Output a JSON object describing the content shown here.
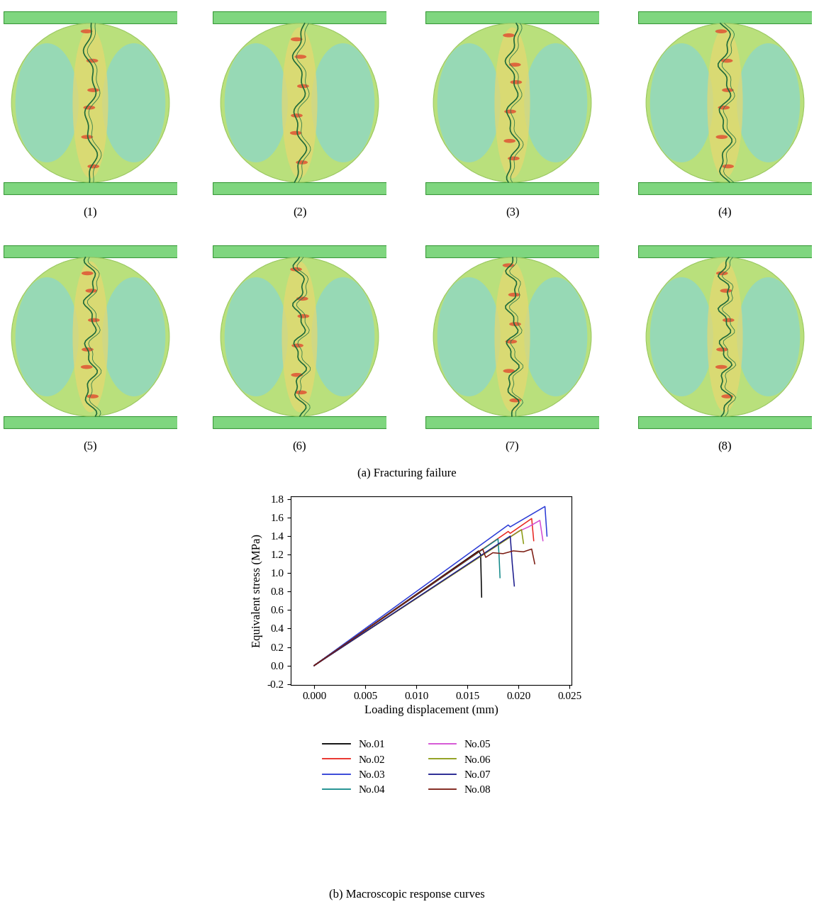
{
  "panels": {
    "caption": "(a) Fracturing failure",
    "labels": [
      "(1)",
      "(2)",
      "(3)",
      "(4)",
      "(5)",
      "(6)",
      "(7)",
      "(8)"
    ]
  },
  "chart_data": {
    "type": "line",
    "title": "(b) Macroscopic response curves",
    "x_label": "Loading displacement (mm)",
    "y_label": "Equivalent stress (MPa)",
    "xlim": [
      -0.0023,
      0.0252
    ],
    "xticks": [
      {
        "value": 0.0,
        "label": "0.000"
      },
      {
        "value": 0.005,
        "label": "0.005"
      },
      {
        "value": 0.01,
        "label": "0.010"
      },
      {
        "value": 0.015,
        "label": "0.015"
      },
      {
        "value": 0.02,
        "label": "0.020"
      },
      {
        "value": 0.025,
        "label": "0.025"
      }
    ],
    "ylim": [
      -0.21,
      1.83
    ],
    "yticks": [
      -0.2,
      {
        "value": 0.0,
        "label": "0.0"
      },
      0.2,
      0.4,
      0.6,
      0.8,
      {
        "value": 1.0,
        "label": "1.0"
      },
      1.2,
      1.4,
      1.6,
      1.8
    ],
    "series": [
      {
        "name": "No.01",
        "color": "#000000",
        "x": [
          0,
          0.0161,
          0.0163,
          0.0164
        ],
        "values": [
          0,
          1.24,
          1.2,
          0.74
        ]
      },
      {
        "name": "No.02",
        "color": "#e8251f",
        "x": [
          0,
          0.019,
          0.0192,
          0.0213,
          0.0215
        ],
        "values": [
          0,
          1.45,
          1.43,
          1.59,
          1.35
        ]
      },
      {
        "name": "No.03",
        "color": "#2a3ad6",
        "x": [
          0,
          0.019,
          0.0192,
          0.0226,
          0.0228
        ],
        "values": [
          0,
          1.52,
          1.5,
          1.72,
          1.4
        ]
      },
      {
        "name": "No.04",
        "color": "#138a8a",
        "x": [
          0,
          0.018,
          0.0181,
          0.0182
        ],
        "values": [
          0,
          1.37,
          1.2,
          0.95
        ]
      },
      {
        "name": "No.05",
        "color": "#d24ad2",
        "x": [
          0,
          0.02,
          0.021,
          0.0221,
          0.0224
        ],
        "values": [
          0,
          1.45,
          1.5,
          1.57,
          1.35
        ]
      },
      {
        "name": "No.06",
        "color": "#8a9a10",
        "x": [
          0,
          0.0203,
          0.0205
        ],
        "values": [
          0,
          1.47,
          1.32
        ]
      },
      {
        "name": "No.07",
        "color": "#1a1a8c",
        "x": [
          0,
          0.0192,
          0.0194,
          0.0196
        ],
        "values": [
          0,
          1.4,
          1.1,
          0.86
        ]
      },
      {
        "name": "No.08",
        "color": "#7a1a10",
        "x": [
          0,
          0.0165,
          0.0168,
          0.0175,
          0.0185,
          0.0195,
          0.0205,
          0.0213,
          0.0216
        ],
        "values": [
          0,
          1.26,
          1.17,
          1.22,
          1.21,
          1.24,
          1.23,
          1.26,
          1.1
        ]
      }
    ]
  }
}
